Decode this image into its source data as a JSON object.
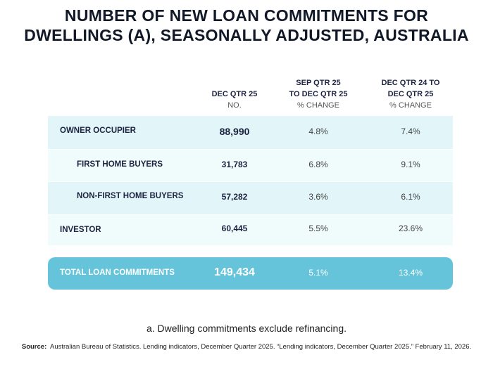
{
  "title_line1": "NUMBER OF NEW LOAN COMMITMENTS FOR",
  "title_line2": "DWELLINGS (A), SEASONALLY ADJUSTED, AUSTRALIA",
  "columns": [
    {
      "head": [
        "DEC QTR 25"
      ],
      "sub": "NO."
    },
    {
      "head": [
        "SEP QTR 25",
        "TO DEC QTR 25"
      ],
      "sub": "% CHANGE"
    },
    {
      "head": [
        "DEC QTR 24 TO",
        "DEC QTR 25"
      ],
      "sub": "% CHANGE"
    }
  ],
  "rows": [
    {
      "label": "OWNER OCCUPIER",
      "value": "88,990",
      "sep_change": "4.8%",
      "dec_change": "7.4%",
      "bg": "#e2f6f9"
    },
    {
      "label": "FIRST HOME BUYERS",
      "value": "31,783",
      "sep_change": "6.8%",
      "dec_change": "9.1%",
      "bg": "#f0fbfc"
    },
    {
      "label": "NON-FIRST HOME BUYERS",
      "value": "57,282",
      "sep_change": "3.6%",
      "dec_change": "6.1%",
      "bg": "#e2f6f9"
    },
    {
      "label": "INVESTOR",
      "value": "60,445",
      "sep_change": "5.5%",
      "dec_change": "23.6%",
      "bg": "#f0fbfc"
    }
  ],
  "total": {
    "label": "TOTAL LOAN COMMITMENTS",
    "value": "149,434",
    "sep_change": "5.1%",
    "dec_change": "13.4%",
    "bg": "#66c4da"
  },
  "note": "a. Dwelling commitments exclude refinancing.",
  "source_label": "Source:",
  "source_text": "Australian Bureau of Statistics. Lending indicators, December Quarter 2025. “Lending indicators, December Quarter 2025.” February 11, 2026."
}
